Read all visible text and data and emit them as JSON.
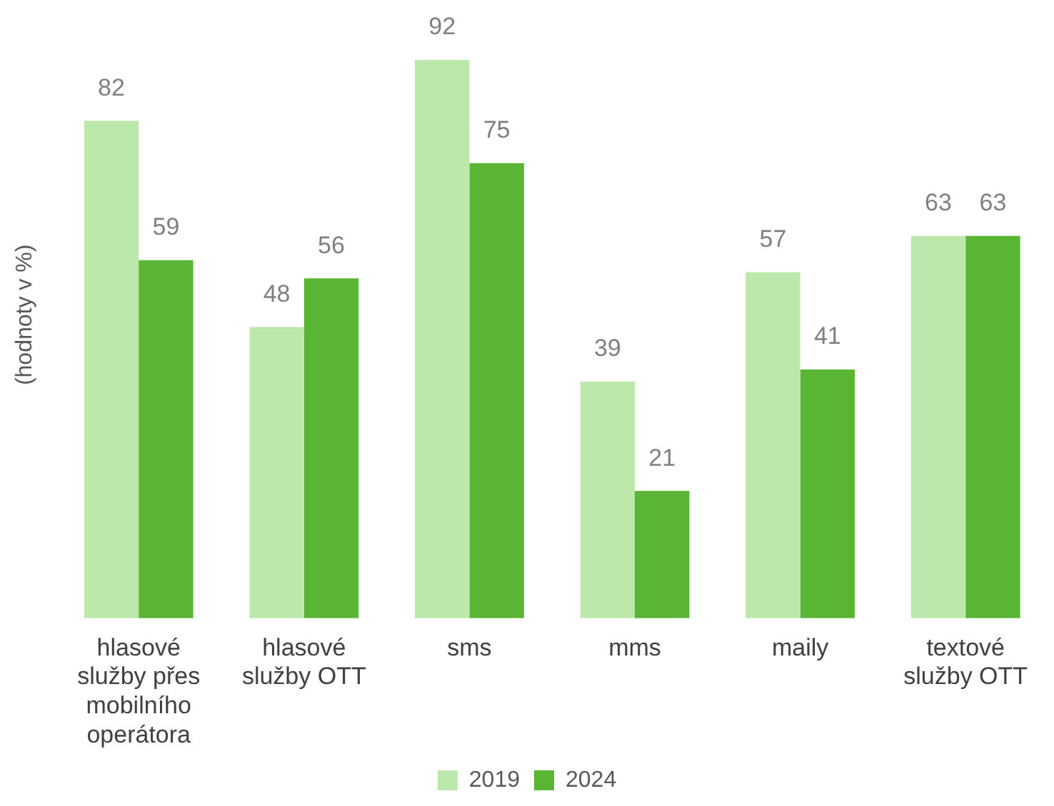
{
  "chart_data": {
    "type": "bar",
    "ylabel": "(hodnoty v %)",
    "categories": [
      "hlasové služby přes mobilního operátora",
      "hlasové služby OTT",
      "sms",
      "mms",
      "maily",
      "textové služby OTT"
    ],
    "series": [
      {
        "name": "2019",
        "color": "#bce8ac",
        "values": [
          82,
          48,
          92,
          39,
          57,
          63
        ]
      },
      {
        "name": "2024",
        "color": "#5ab534",
        "values": [
          59,
          56,
          75,
          21,
          41,
          63
        ]
      }
    ],
    "tick_labels": "x",
    "grid": false,
    "legend": "bottom",
    "data_labels": true
  }
}
